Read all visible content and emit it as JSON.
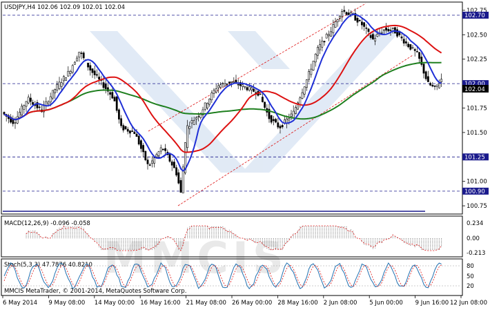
{
  "main": {
    "symbol_label": "USDJPY,H4  102.06 102.09 102.01 102.04",
    "price_ticks": [
      "102.75",
      "102.50",
      "102.25",
      "102.00",
      "101.75",
      "101.50",
      "101.25",
      "101.00",
      "100.75"
    ],
    "price_min": 100.68,
    "price_max": 102.82,
    "levels": [
      {
        "value": 102.7,
        "label": "102.70",
        "color": "#1a1a8c"
      },
      {
        "value": 102.0,
        "label": "102.00",
        "color": "#1a1a8c"
      },
      {
        "value": 101.25,
        "label": "101.25",
        "color": "#1a1a8c"
      },
      {
        "value": 100.9,
        "label": "100.90",
        "color": "#1a1a8c"
      }
    ],
    "current_price_label": "102.04"
  },
  "macd": {
    "label": "MACD(12,26,9) -0.096 -0.058",
    "ticks": [
      "0.234",
      "0.00",
      "-0.213"
    ]
  },
  "stoch": {
    "label": "Stoch(5,3,3) 47.7876 40.8210",
    "ticks": [
      "80",
      "50",
      "20"
    ]
  },
  "footer": {
    "copyright": "MMCIS MetaTrader, © 2001-2014, MetaQuotes Software Corp."
  },
  "time_axis": [
    "6 May 2014",
    "9 May 08:00",
    "14 May 00:00",
    "16 May 16:00",
    "21 May 08:00",
    "26 May 00:00",
    "28 May 16:00",
    "2 Jun 08:00",
    "5 Jun 00:00",
    "9 Jun 16:00",
    "12 Jun 08:00"
  ],
  "watermark_text": "MMCIS",
  "colors": {
    "candle": "#000000",
    "ma_fast": "#1f2fd6",
    "ma_mid": "#dd1111",
    "ma_slow": "#1e7f1e",
    "channel": "#dd1111",
    "level": "#1a1a8c",
    "watermark": "#c9d9ee"
  }
}
